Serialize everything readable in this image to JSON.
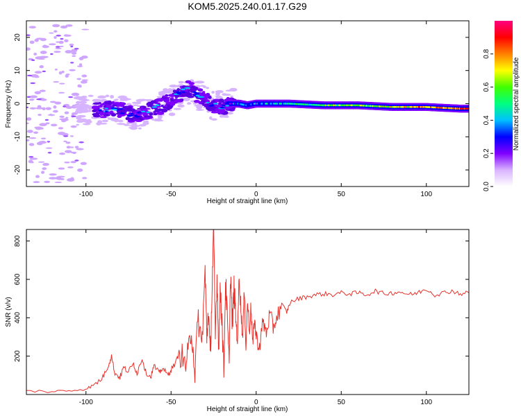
{
  "title": "KOM5.2025.240.01.17.G29",
  "chart_data": [
    {
      "type": "heatmap",
      "id": "spectrogram",
      "xlabel": "Height of straight line (km)",
      "ylabel": "Frequency (Hz)",
      "xlim": [
        -135,
        125
      ],
      "ylim": [
        -25,
        25
      ],
      "xticks": [
        -100,
        -50,
        0,
        50,
        100
      ],
      "yticks": [
        -20,
        -10,
        0,
        10,
        20
      ],
      "ridge": [
        [
          -92,
          -2
        ],
        [
          -85,
          -1.5
        ],
        [
          -80,
          -2
        ],
        [
          -75,
          -3
        ],
        [
          -70,
          -3.5
        ],
        [
          -65,
          -2.5
        ],
        [
          -60,
          -1.5
        ],
        [
          -55,
          -0.5
        ],
        [
          -50,
          1
        ],
        [
          -45,
          3
        ],
        [
          -40,
          4.5
        ],
        [
          -35,
          3
        ],
        [
          -30,
          1
        ],
        [
          -25,
          -0.5
        ],
        [
          -20,
          -1
        ],
        [
          -15,
          0
        ],
        [
          -10,
          0
        ],
        [
          -5,
          -0.5
        ],
        [
          0,
          0
        ],
        [
          10,
          0
        ],
        [
          20,
          0
        ],
        [
          40,
          -0.5
        ],
        [
          60,
          -0.5
        ],
        [
          80,
          -1
        ],
        [
          100,
          -1
        ],
        [
          120,
          -1.5
        ]
      ],
      "colorbar": {
        "label": "Normalized spectral amplitude",
        "range": [
          0,
          1
        ],
        "ticks": [
          0.0,
          0.2,
          0.4,
          0.6,
          0.8
        ],
        "tick_labels": [
          "0.0",
          "0.2",
          "0.4",
          "0.6",
          "0.8"
        ],
        "colors": [
          "#ffffff",
          "#d9b3ff",
          "#7f00ff",
          "#0000ff",
          "#00c0ff",
          "#00ff80",
          "#40ff00",
          "#ffff00",
          "#ff8000",
          "#ff0000",
          "#ff0080"
        ]
      }
    },
    {
      "type": "line",
      "id": "snr",
      "xlabel": "Height of straight line (km)",
      "ylabel": "SNR (v/v)",
      "xlim": [
        -135,
        125
      ],
      "ylim": [
        0,
        860
      ],
      "xticks": [
        -100,
        -50,
        0,
        50,
        100
      ],
      "yticks": [
        200,
        400,
        600,
        800
      ],
      "line_color": "#e8302a",
      "series": [
        {
          "name": "SNR",
          "x": [
            -135,
            -120,
            -110,
            -100,
            -95,
            -90,
            -87,
            -85,
            -83,
            -80,
            -78,
            -75,
            -72,
            -70,
            -67,
            -65,
            -62,
            -60,
            -57,
            -55,
            -52,
            -50,
            -47,
            -45,
            -42,
            -40,
            -38,
            -36,
            -34,
            -32,
            -30,
            -29,
            -28,
            -27,
            -26,
            -25,
            -24,
            -23,
            -22,
            -21,
            -20,
            -19,
            -18,
            -17,
            -16,
            -15,
            -14,
            -13,
            -12,
            -11,
            -10,
            -9,
            -8,
            -7,
            -6,
            -5,
            -4,
            -3,
            -2,
            -1,
            0,
            2,
            4,
            6,
            8,
            10,
            12,
            15,
            18,
            20,
            25,
            30,
            35,
            40,
            45,
            50,
            55,
            60,
            65,
            70,
            75,
            80,
            85,
            90,
            95,
            100,
            105,
            110,
            115,
            120,
            125
          ],
          "values": [
            20,
            15,
            20,
            30,
            50,
            90,
            150,
            200,
            110,
            90,
            140,
            120,
            160,
            110,
            190,
            120,
            90,
            150,
            110,
            140,
            100,
            130,
            170,
            230,
            150,
            200,
            350,
            120,
            400,
            250,
            640,
            300,
            450,
            180,
            520,
            860,
            300,
            620,
            250,
            560,
            380,
            120,
            590,
            400,
            160,
            630,
            350,
            550,
            400,
            280,
            620,
            450,
            300,
            530,
            260,
            490,
            330,
            460,
            250,
            400,
            300,
            250,
            380,
            320,
            420,
            350,
            400,
            470,
            430,
            480,
            500,
            510,
            520,
            525,
            520,
            530,
            525,
            530,
            520,
            540,
            525,
            530,
            535,
            520,
            530,
            550,
            520,
            530,
            540,
            525,
            530
          ]
        }
      ]
    }
  ]
}
